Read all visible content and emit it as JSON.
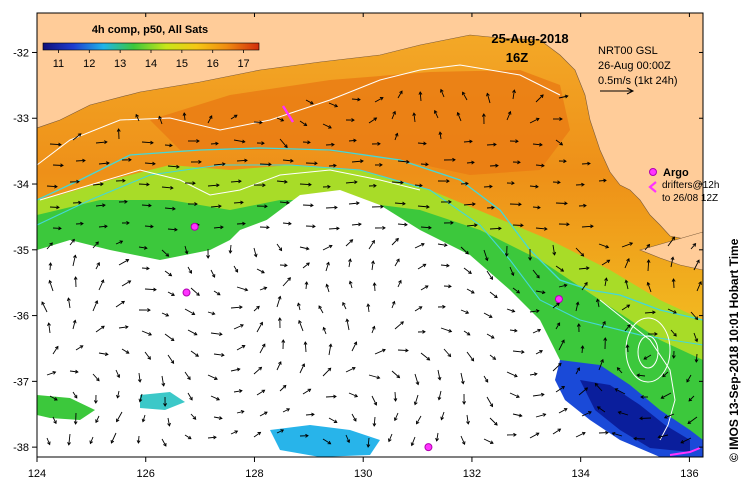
{
  "map": {
    "title": "4h comp, p50, All Sats",
    "date": "25-Aug-2018",
    "time": "16Z",
    "current_source": "NRT00 GSL",
    "current_time": "26-Aug 00:00Z",
    "vector_scale": "0.5m/s (1kt 24h)",
    "argo_label": "Argo",
    "drifter_label": "drifters@12h",
    "drifter_range": "to 26/08 12Z",
    "credit": "© IMOS 13-Sep-2018 10:01 Hobart Time",
    "colorbar": {
      "ticks": [
        "11",
        "12",
        "13",
        "14",
        "15",
        "16",
        "17"
      ],
      "min": 10.5,
      "max": 17.5
    },
    "lon_ticks": [
      "124",
      "126",
      "128",
      "130",
      "132",
      "134",
      "136"
    ],
    "lat_ticks": [
      "-32",
      "-33",
      "-34",
      "-35",
      "-36",
      "-37",
      "-38"
    ],
    "colors": {
      "land": "#ffcc99",
      "warm": "#f0a01c",
      "cool": "#38c838",
      "cold": "#0a1e9c",
      "argo": "#ff33ff",
      "contour_200m": "#44d8d8"
    },
    "argo_floats": [
      {
        "lon": 126.9,
        "lat": -34.65
      },
      {
        "lon": 126.75,
        "lat": -35.65
      },
      {
        "lon": 133.6,
        "lat": -35.75
      },
      {
        "lon": 131.2,
        "lat": -38.0
      }
    ]
  }
}
